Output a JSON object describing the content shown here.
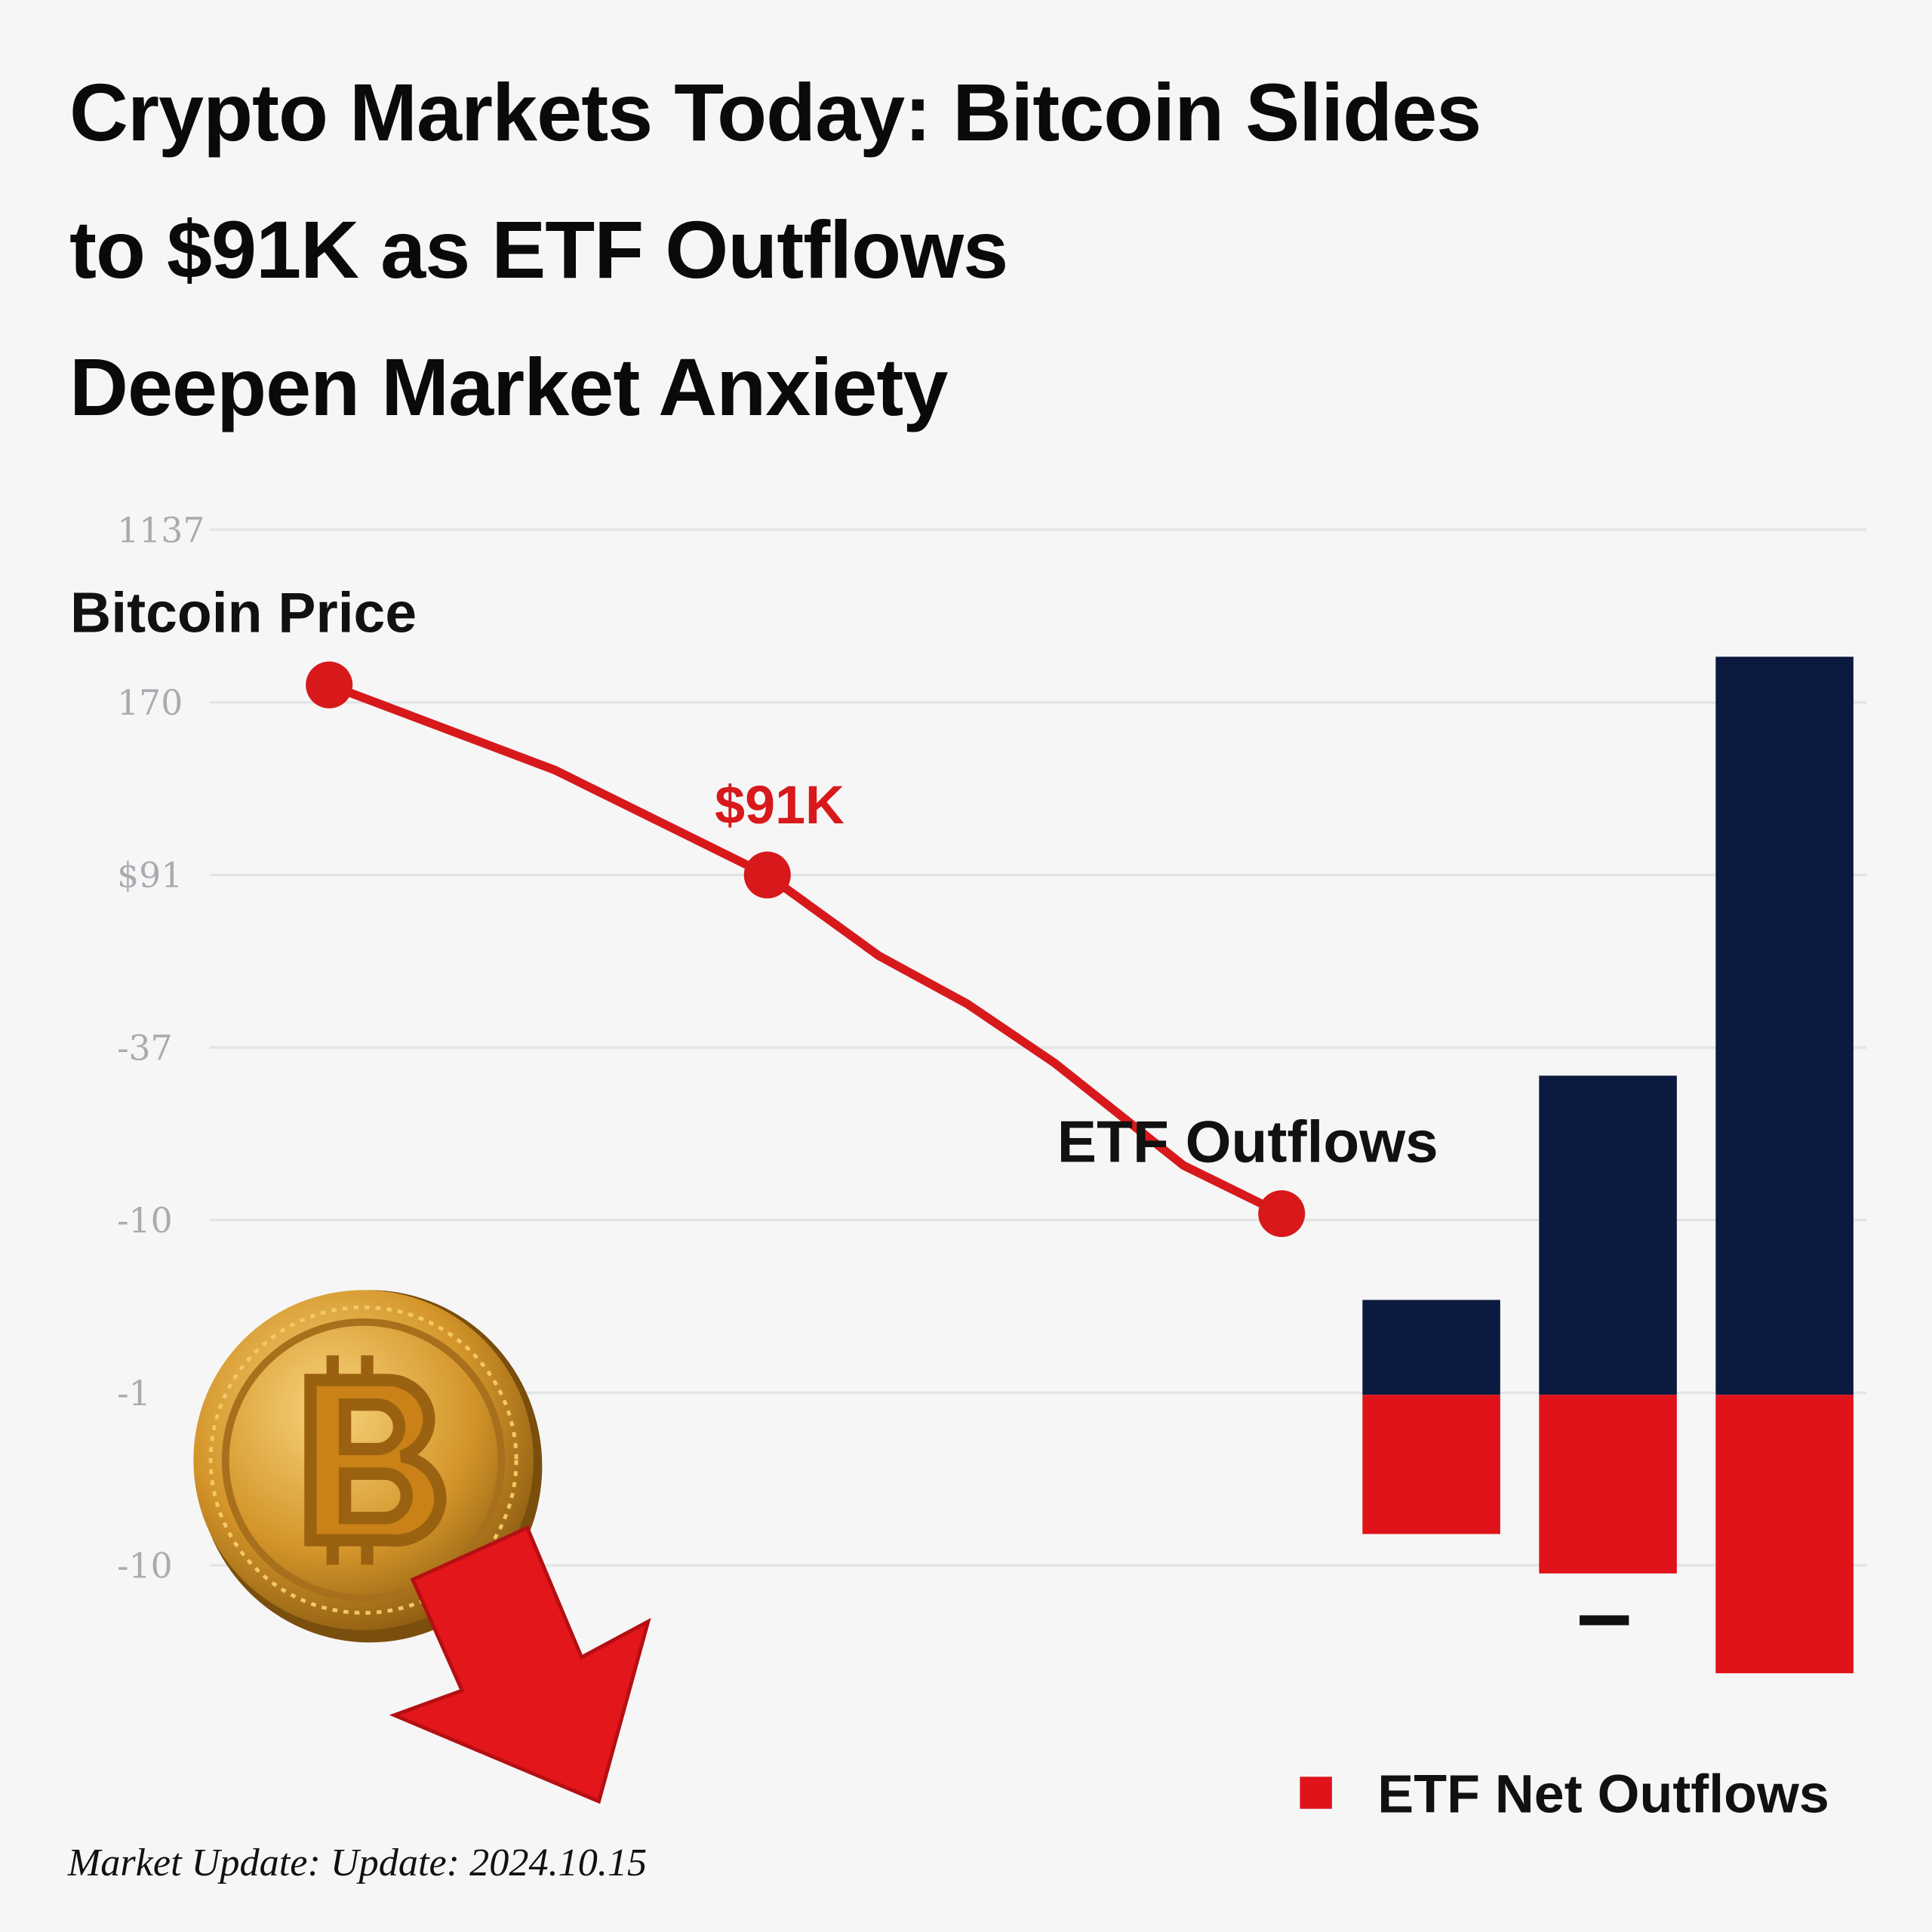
{
  "chart_data": [
    {
      "type": "line",
      "title": "Crypto Markets Today: Bitcoin Slides\nto $91K as ETF Outflows\nDeepen Market Anxiety",
      "annotation": "ETF Outflows",
      "x": [
        0,
        1.66,
        3.22,
        4.04,
        4.69,
        5.33,
        6.28,
        7
      ],
      "xlim": [
        -0.88,
        11.3
      ],
      "series": [
        {
          "name": "Bitcoin Price",
          "color": "#d7191c",
          "values": [
            178,
            139,
            91,
            54,
            32,
            5,
            -42,
            -64
          ],
          "value_labels": [
            null,
            null,
            "$91K",
            null,
            null,
            null,
            null,
            null
          ]
        }
      ],
      "marker_indices": [
        0,
        2,
        7
      ],
      "ylim": [
        -315,
        249
      ],
      "yticks": [
        {
          "value": 249,
          "label": "1137"
        },
        170,
        {
          "value": 91,
          "label": "$91"
        },
        {
          "value": 12,
          "label": "-37"
        },
        {
          "value": -67,
          "label": "-10"
        },
        {
          "value": -146,
          "label": "-1"
        },
        {
          "value": -225,
          "label": "-10"
        }
      ],
      "grid": true
    },
    {
      "type": "bar",
      "categories": [
        null,
        null,
        null
      ],
      "series": [
        {
          "color": "#0d1a40",
          "values": [
            77,
            259,
            599
          ]
        },
        {
          "name": "ETF Net Outflows",
          "color": "#e0121a",
          "values": [
            -113,
            -145,
            -226
          ]
        }
      ],
      "ylim": [
        -298,
        702
      ],
      "legend": "lower right"
    }
  ],
  "footer": "Market Update: Update: 2024.10.15"
}
